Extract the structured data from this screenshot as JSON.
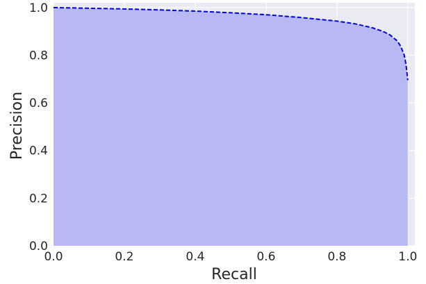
{
  "chart_data": {
    "type": "area",
    "xlabel": "Recall",
    "ylabel": "Precision",
    "xlim": [
      0.0,
      1.02
    ],
    "ylim": [
      0.0,
      1.02
    ],
    "x_ticks": [
      "0.0",
      "0.2",
      "0.4",
      "0.6",
      "0.8",
      "1.0"
    ],
    "y_ticks": [
      "0.0",
      "0.2",
      "0.4",
      "0.6",
      "0.8",
      "1.0"
    ],
    "grid": true,
    "series": [
      {
        "style": "dashed line with filled area underneath",
        "color": "#0000dd",
        "fill_color": "#b8b9f3",
        "x": [
          0.0,
          0.1,
          0.2,
          0.3,
          0.4,
          0.5,
          0.6,
          0.7,
          0.8,
          0.85,
          0.9,
          0.93,
          0.95,
          0.97,
          0.98,
          0.99,
          0.995,
          1.0
        ],
        "y": [
          1.0,
          0.997,
          0.994,
          0.99,
          0.985,
          0.978,
          0.97,
          0.958,
          0.943,
          0.932,
          0.915,
          0.9,
          0.885,
          0.86,
          0.838,
          0.8,
          0.76,
          0.695
        ]
      }
    ]
  }
}
